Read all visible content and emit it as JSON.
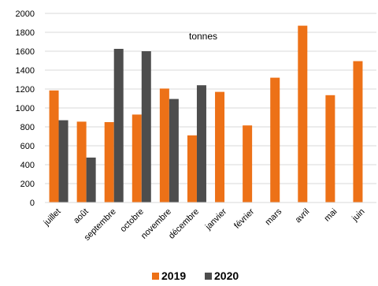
{
  "chart_data": {
    "type": "bar",
    "title": "",
    "unit_label": "tonnes",
    "xlabel": "",
    "ylabel": "",
    "ylim": [
      0,
      2000
    ],
    "yticks": [
      0,
      200,
      400,
      600,
      800,
      1000,
      1200,
      1400,
      1600,
      1800,
      2000
    ],
    "grid": true,
    "legend_position": "bottom",
    "categories": [
      "juillet",
      "août",
      "septembre",
      "octobre",
      "novembre",
      "décembre",
      "janvier",
      "février",
      "mars",
      "avril",
      "mai",
      "juin"
    ],
    "series": [
      {
        "name": "2019",
        "color": "#ED7117",
        "values": [
          1185,
          855,
          850,
          930,
          1205,
          710,
          1170,
          815,
          1320,
          1870,
          1135,
          1495
        ]
      },
      {
        "name": "2020",
        "color": "#4D4D4D",
        "values": [
          870,
          475,
          1625,
          1600,
          1095,
          1240,
          null,
          null,
          null,
          null,
          null,
          null
        ]
      }
    ]
  }
}
